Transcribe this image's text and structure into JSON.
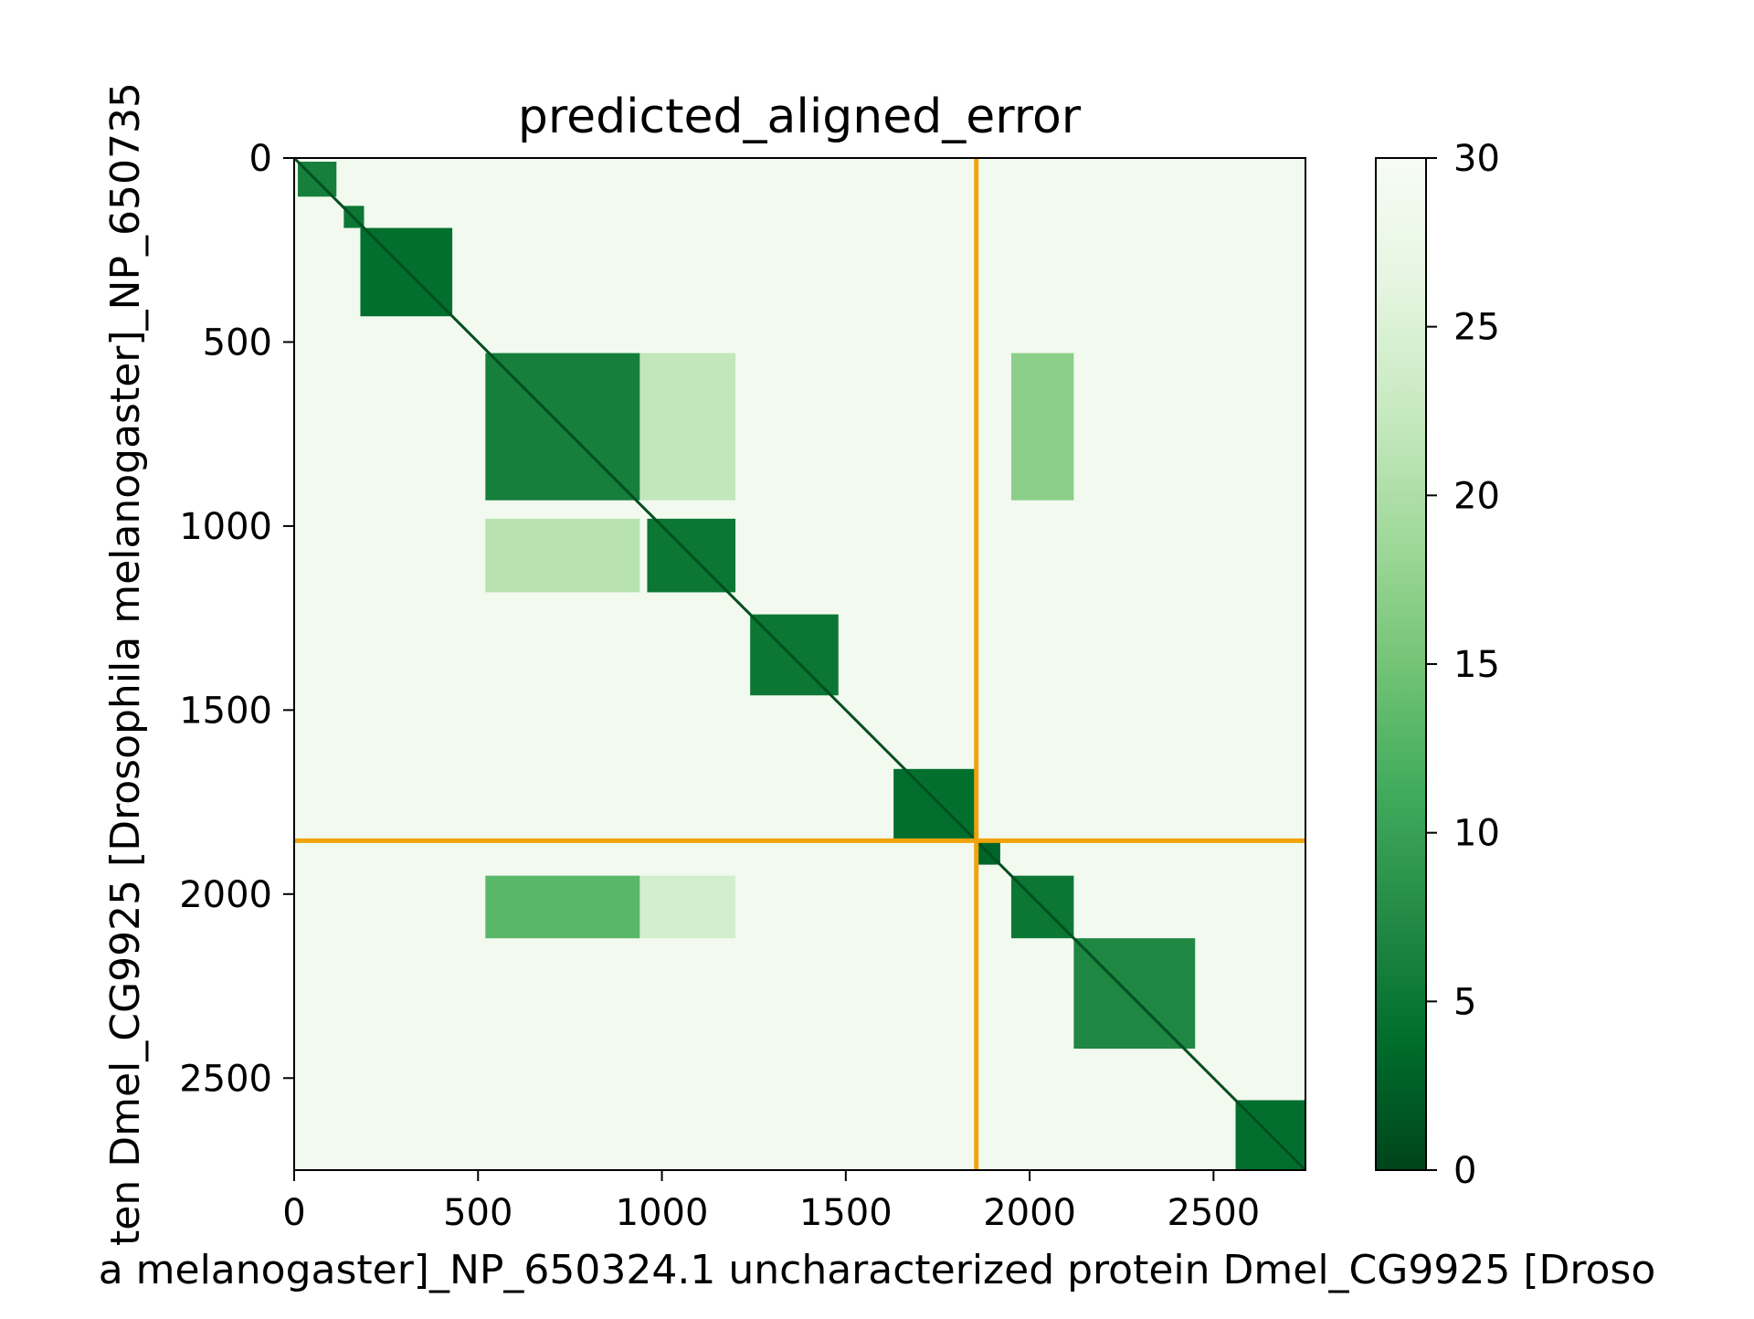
{
  "chart_data": {
    "type": "heatmap",
    "title": "predicted_aligned_error",
    "xlabel": "a melanogaster]_NP_650324.1 uncharacterized protein Dmel_CG9925 [Droso",
    "ylabel": "ten Dmel_CG9925 [Drosophila melanogaster]_NP_650735",
    "matrix_size": 2750,
    "xlim": [
      0,
      2750
    ],
    "ylim": [
      2750,
      0
    ],
    "x_ticks": [
      0,
      500,
      1000,
      1500,
      2000,
      2500
    ],
    "y_ticks": [
      0,
      500,
      1000,
      1500,
      2000,
      2500
    ],
    "colorbar": {
      "min": 0,
      "max": 30,
      "ticks": [
        0,
        5,
        10,
        15,
        20,
        25,
        30
      ],
      "colormap": "Greens_r",
      "colors": [
        "#00441b",
        "#006d2c",
        "#238b45",
        "#41ab5d",
        "#74c476",
        "#a1d99b",
        "#c7e9c0",
        "#e5f5e0",
        "#f7fcf5"
      ]
    },
    "background_value": 29,
    "diagonal_value": 1,
    "chain_boundary": 1855,
    "boundary_color": "#f0a30a",
    "blocks": [
      {
        "x": [
          10,
          115
        ],
        "y": [
          10,
          105
        ],
        "value": 6
      },
      {
        "x": [
          135,
          190
        ],
        "y": [
          130,
          190
        ],
        "value": 5
      },
      {
        "x": [
          180,
          430
        ],
        "y": [
          190,
          430
        ],
        "value": 4
      },
      {
        "x": [
          520,
          940
        ],
        "y": [
          530,
          930
        ],
        "value": 6
      },
      {
        "x": [
          940,
          1200
        ],
        "y": [
          530,
          930
        ],
        "value": 22
      },
      {
        "x": [
          1950,
          2120
        ],
        "y": [
          530,
          930
        ],
        "value": 17
      },
      {
        "x": [
          520,
          940
        ],
        "y": [
          980,
          1180
        ],
        "value": 21
      },
      {
        "x": [
          960,
          1200
        ],
        "y": [
          980,
          1180
        ],
        "value": 5
      },
      {
        "x": [
          1240,
          1480
        ],
        "y": [
          1240,
          1460
        ],
        "value": 5
      },
      {
        "x": [
          1630,
          1860
        ],
        "y": [
          1660,
          1850
        ],
        "value": 4
      },
      {
        "x": [
          1860,
          1920
        ],
        "y": [
          1860,
          1920
        ],
        "value": 3
      },
      {
        "x": [
          1950,
          2120
        ],
        "y": [
          1950,
          2120
        ],
        "value": 5
      },
      {
        "x": [
          520,
          940
        ],
        "y": [
          1950,
          2120
        ],
        "value": 13
      },
      {
        "x": [
          940,
          1200
        ],
        "y": [
          1950,
          2120
        ],
        "value": 24
      },
      {
        "x": [
          2120,
          2450
        ],
        "y": [
          2120,
          2420
        ],
        "value": 7
      },
      {
        "x": [
          2560,
          2750
        ],
        "y": [
          2560,
          2750
        ],
        "value": 4
      }
    ]
  }
}
